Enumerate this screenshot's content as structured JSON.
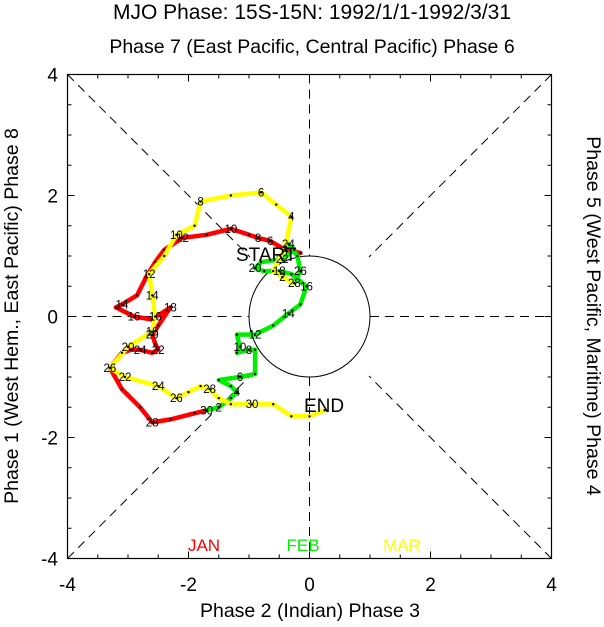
{
  "title": "MJO Phase: 15S-15N: 1992/1/1-1992/3/31",
  "top_label": "Phase 7 (East Pacific, Central Pacific) Phase 6",
  "bottom_label": "Phase 2 (Indian) Phase 3",
  "left_label": "Phase 1 (West Hem., East Pacific) Phase 8",
  "right_label": "Phase 5 (West Pacific, Maritime) Phase 4",
  "start_label": "START",
  "end_label": "END",
  "chart_data": {
    "type": "line",
    "xlim": [
      -4,
      4
    ],
    "ylim": [
      -4,
      4
    ],
    "xticks": [
      "-4",
      "-2",
      "0",
      "2",
      "4"
    ],
    "yticks": [
      "4",
      "2",
      "0",
      "-2",
      "-4"
    ],
    "unit_circle_radius": 1,
    "series": [
      {
        "name": "JAN",
        "color": "#ff0000",
        "points": [
          [
            -0.15,
            1.05
          ],
          [
            -0.4,
            1.1
          ],
          [
            -0.65,
            1.25
          ],
          [
            -0.85,
            1.3
          ],
          [
            -1.0,
            1.35
          ],
          [
            -1.3,
            1.45
          ],
          [
            -1.7,
            1.35
          ],
          [
            -2.1,
            1.3
          ],
          [
            -2.4,
            1.1
          ],
          [
            -2.55,
            0.9
          ],
          [
            -2.7,
            0.65
          ],
          [
            -2.85,
            0.35
          ],
          [
            -3.1,
            0.2
          ],
          [
            -3.2,
            0.15
          ],
          [
            -2.9,
            0.0
          ],
          [
            -2.6,
            -0.05
          ],
          [
            -2.3,
            0.15
          ],
          [
            -2.5,
            -0.15
          ],
          [
            -2.6,
            -0.3
          ],
          [
            -2.55,
            -0.45
          ],
          [
            -2.5,
            -0.55
          ],
          [
            -2.6,
            -0.6
          ],
          [
            -2.8,
            -0.55
          ],
          [
            -2.95,
            -0.55
          ],
          [
            -3.1,
            -0.6
          ],
          [
            -3.3,
            -0.85
          ],
          [
            -3.1,
            -1.2
          ],
          [
            -2.8,
            -1.5
          ],
          [
            -2.6,
            -1.75
          ],
          [
            -2.3,
            -1.7
          ],
          [
            -1.9,
            -1.6
          ],
          [
            -1.7,
            -1.55
          ]
        ],
        "labels": [
          {
            "t": "4",
            "i": 1
          },
          {
            "t": "6",
            "i": 2
          },
          {
            "t": "8",
            "i": 3
          },
          {
            "t": "10",
            "i": 5
          },
          {
            "t": "12",
            "i": 7
          },
          {
            "t": "14",
            "i": 12
          },
          {
            "t": "16",
            "i": 14
          },
          {
            "t": "18",
            "i": 16
          },
          {
            "t": "20",
            "i": 18
          },
          {
            "t": "22",
            "i": 20
          },
          {
            "t": "24",
            "i": 22
          },
          {
            "t": "26",
            "i": 25
          },
          {
            "t": "28",
            "i": 28
          },
          {
            "t": "30",
            "i": 31
          }
        ]
      },
      {
        "name": "FEB",
        "color": "#00ee00",
        "points": [
          [
            -1.7,
            -1.55
          ],
          [
            -1.5,
            -1.5
          ],
          [
            -1.3,
            -1.35
          ],
          [
            -1.2,
            -1.25
          ],
          [
            -1.3,
            -1.15
          ],
          [
            -1.5,
            -1.05
          ],
          [
            -1.15,
            -1.0
          ],
          [
            -0.9,
            -0.95
          ],
          [
            -0.9,
            -0.55
          ],
          [
            -1.0,
            -0.55
          ],
          [
            -1.2,
            -0.6
          ],
          [
            -1.15,
            -0.5
          ],
          [
            -1.2,
            -0.3
          ],
          [
            -0.9,
            -0.3
          ],
          [
            -0.6,
            -0.15
          ],
          [
            -0.35,
            0.05
          ],
          [
            -0.15,
            0.2
          ],
          [
            -0.05,
            0.5
          ],
          [
            -0.3,
            0.7
          ],
          [
            -0.5,
            0.75
          ],
          [
            -0.75,
            0.75
          ],
          [
            -0.9,
            0.8
          ],
          [
            -0.8,
            0.9
          ],
          [
            -0.45,
            0.95
          ],
          [
            -0.25,
            1.1
          ],
          [
            -0.35,
            1.2
          ],
          [
            -0.2,
            1.0
          ],
          [
            -0.15,
            0.75
          ],
          [
            -0.25,
            0.55
          ]
        ],
        "labels": [
          {
            "t": "2",
            "i": 1
          },
          {
            "t": "4",
            "i": 3
          },
          {
            "t": "6",
            "i": 6
          },
          {
            "t": "8",
            "i": 9
          },
          {
            "t": "10",
            "i": 11
          },
          {
            "t": "12",
            "i": 13
          },
          {
            "t": "14",
            "i": 15
          },
          {
            "t": "16",
            "i": 17
          },
          {
            "t": "18",
            "i": 19
          },
          {
            "t": "20",
            "i": 21
          },
          {
            "t": "22",
            "i": 23
          },
          {
            "t": "24",
            "i": 25
          },
          {
            "t": "26",
            "i": 27
          },
          {
            "t": "28",
            "i": 28
          }
        ]
      },
      {
        "name": "MAR",
        "color": "#ffff00",
        "points": [
          [
            -0.25,
            0.55
          ],
          [
            -0.45,
            0.65
          ],
          [
            -0.6,
            0.75
          ],
          [
            -0.4,
            1.15
          ],
          [
            -0.3,
            1.65
          ],
          [
            -0.55,
            1.85
          ],
          [
            -0.8,
            2.05
          ],
          [
            -1.3,
            2.0
          ],
          [
            -1.8,
            1.9
          ],
          [
            -1.9,
            1.5
          ],
          [
            -2.2,
            1.35
          ],
          [
            -2.4,
            1.0
          ],
          [
            -2.65,
            0.7
          ],
          [
            -2.6,
            0.35
          ],
          [
            -2.55,
            0.0
          ],
          [
            -2.6,
            -0.25
          ],
          [
            -3.0,
            -0.5
          ],
          [
            -3.3,
            -0.85
          ],
          [
            -3.05,
            -1.0
          ],
          [
            -2.5,
            -1.15
          ],
          [
            -2.2,
            -1.35
          ],
          [
            -2.0,
            -1.25
          ],
          [
            -1.8,
            -1.15
          ],
          [
            -1.65,
            -1.2
          ],
          [
            -1.5,
            -1.35
          ],
          [
            -1.3,
            -1.45
          ],
          [
            -0.95,
            -1.45
          ],
          [
            -0.6,
            -1.45
          ],
          [
            -0.3,
            -1.65
          ],
          [
            0.0,
            -1.65
          ],
          [
            0.25,
            -1.55
          ]
        ],
        "labels": [
          {
            "t": "2",
            "i": 1
          },
          {
            "t": "4",
            "i": 4
          },
          {
            "t": "6",
            "i": 6
          },
          {
            "t": "8",
            "i": 8
          },
          {
            "t": "10",
            "i": 10
          },
          {
            "t": "12",
            "i": 12
          },
          {
            "t": "14",
            "i": 13
          },
          {
            "t": "16",
            "i": 14
          },
          {
            "t": "18",
            "i": 15
          },
          {
            "t": "20",
            "i": 16
          },
          {
            "t": "22",
            "i": 18
          },
          {
            "t": "24",
            "i": 19
          },
          {
            "t": "26",
            "i": 20
          },
          {
            "t": "28",
            "i": 23
          },
          {
            "t": "30",
            "i": 26
          }
        ]
      }
    ]
  }
}
